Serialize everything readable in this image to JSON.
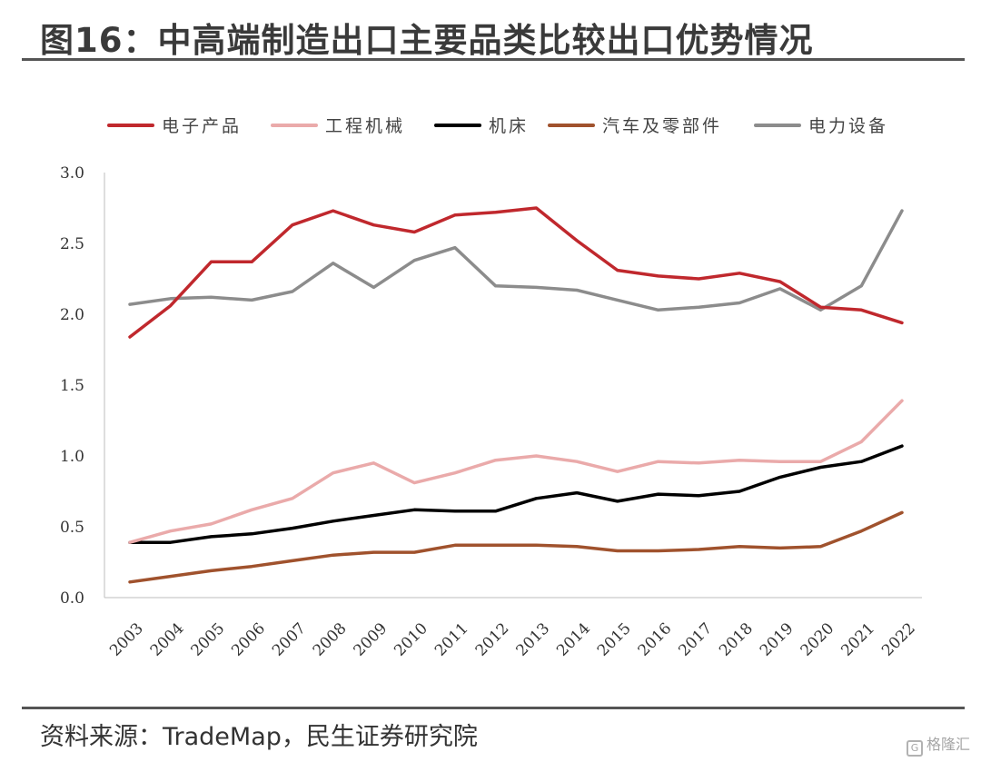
{
  "figure": {
    "title": "图16：中高端制造出口主要品类比较出口优势情况",
    "source": "资料来源：TradeMap，民生证券研究院",
    "watermark": "格隆汇"
  },
  "chart_data": {
    "type": "line",
    "title": "",
    "xlabel": "",
    "ylabel": "",
    "x": [
      "2003",
      "2004",
      "2005",
      "2006",
      "2007",
      "2008",
      "2009",
      "2010",
      "2011",
      "2012",
      "2013",
      "2014",
      "2015",
      "2016",
      "2017",
      "2018",
      "2019",
      "2020",
      "2021",
      "2022"
    ],
    "ylim": [
      0,
      3.0
    ],
    "yticks": [
      "0.0",
      "0.5",
      "1.0",
      "1.5",
      "2.0",
      "2.5",
      "3.0"
    ],
    "grid": false,
    "legend_position": "top",
    "series": [
      {
        "name": "电子产品",
        "color": "#c0282d",
        "values": [
          1.84,
          2.06,
          2.37,
          2.37,
          2.63,
          2.73,
          2.63,
          2.58,
          2.7,
          2.72,
          2.75,
          2.52,
          2.31,
          2.27,
          2.25,
          2.29,
          2.23,
          2.05,
          2.03,
          1.94
        ]
      },
      {
        "name": "工程机械",
        "color": "#eaaaaa",
        "values": [
          0.39,
          0.47,
          0.52,
          0.62,
          0.7,
          0.88,
          0.95,
          0.81,
          0.88,
          0.97,
          1.0,
          0.96,
          0.89,
          0.96,
          0.95,
          0.97,
          0.96,
          0.96,
          1.1,
          1.39
        ]
      },
      {
        "name": "机床",
        "color": "#000000",
        "values": [
          0.39,
          0.39,
          0.43,
          0.45,
          0.49,
          0.54,
          0.58,
          0.62,
          0.61,
          0.61,
          0.7,
          0.74,
          0.68,
          0.73,
          0.72,
          0.75,
          0.85,
          0.92,
          0.96,
          1.07
        ]
      },
      {
        "name": "汽车及零部件",
        "color": "#a0522d",
        "values": [
          0.11,
          0.15,
          0.19,
          0.22,
          0.26,
          0.3,
          0.32,
          0.32,
          0.37,
          0.37,
          0.37,
          0.36,
          0.33,
          0.33,
          0.34,
          0.36,
          0.35,
          0.36,
          0.47,
          0.6
        ]
      },
      {
        "name": "电力设备",
        "color": "#8c8c8c",
        "values": [
          2.07,
          2.11,
          2.12,
          2.1,
          2.16,
          2.36,
          2.19,
          2.38,
          2.47,
          2.2,
          2.19,
          2.17,
          2.1,
          2.03,
          2.05,
          2.08,
          2.18,
          2.03,
          2.2,
          2.73
        ]
      }
    ]
  }
}
